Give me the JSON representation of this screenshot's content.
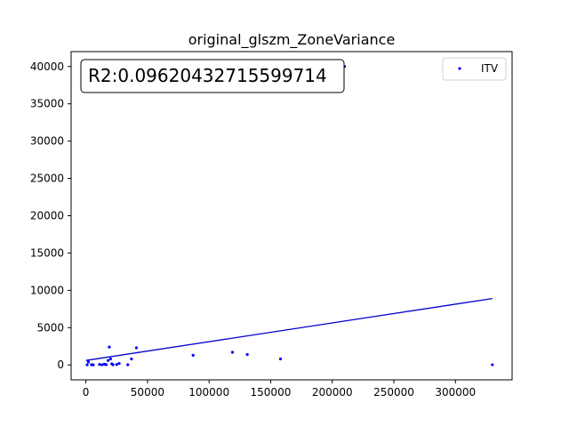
{
  "chart_data": {
    "type": "scatter",
    "title": "original_glszm_ZoneVariance",
    "xlabel": "",
    "ylabel": "",
    "xlim": [
      -12000,
      346000
    ],
    "ylim": [
      -2000,
      42000
    ],
    "x_ticks": [
      0,
      50000,
      100000,
      150000,
      200000,
      250000,
      300000
    ],
    "y_ticks": [
      0,
      5000,
      10000,
      15000,
      20000,
      25000,
      30000,
      35000,
      40000
    ],
    "grid": false,
    "legend": {
      "position": "top-right",
      "entries": [
        "ITV"
      ]
    },
    "annotation": "R2:0.09620432715599714",
    "colors": {
      "points": "#0000ff",
      "fit_line": "#0000cc",
      "axes": "#000000",
      "annotation_border": "#000000"
    },
    "series": [
      {
        "name": "ITV",
        "points": [
          [
            1000,
            20
          ],
          [
            2000,
            400
          ],
          [
            4500,
            30
          ],
          [
            6000,
            10
          ],
          [
            11000,
            60
          ],
          [
            13000,
            20
          ],
          [
            15000,
            100
          ],
          [
            16500,
            40
          ],
          [
            18000,
            600
          ],
          [
            19000,
            2400
          ],
          [
            20000,
            800
          ],
          [
            21000,
            150
          ],
          [
            22000,
            30
          ],
          [
            25000,
            60
          ],
          [
            27000,
            200
          ],
          [
            34000,
            30
          ],
          [
            37000,
            800
          ],
          [
            41000,
            2300
          ],
          [
            87000,
            1300
          ],
          [
            119000,
            1700
          ],
          [
            131000,
            1400
          ],
          [
            158000,
            800
          ],
          [
            210000,
            40000
          ],
          [
            330000,
            20
          ]
        ]
      }
    ],
    "fit_line": {
      "x": [
        0,
        330000
      ],
      "y": [
        600,
        8900
      ]
    }
  }
}
